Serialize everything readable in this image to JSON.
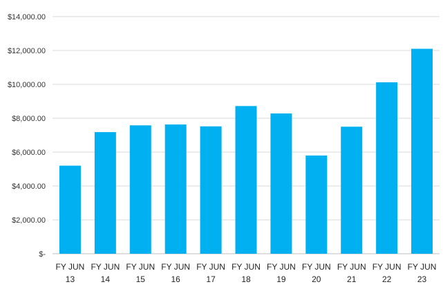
{
  "chart_data": {
    "type": "bar",
    "title": "",
    "xlabel": "",
    "ylabel": "",
    "ylim": [
      0,
      14000
    ],
    "yticks": [
      0,
      2000,
      4000,
      6000,
      8000,
      10000,
      12000,
      14000
    ],
    "ytick_labels": [
      "$-",
      "$2,000.00",
      "$4,000.00",
      "$6,000.00",
      "$8,000.00",
      "$10,000.00",
      "$12,000.00",
      "$14,000.00"
    ],
    "categories": [
      [
        "FY JUN",
        "13"
      ],
      [
        "FY JUN",
        "14"
      ],
      [
        "FY JUN",
        "15"
      ],
      [
        "FY JUN",
        "16"
      ],
      [
        "FY JUN",
        "17"
      ],
      [
        "FY JUN",
        "18"
      ],
      [
        "FY JUN",
        "19"
      ],
      [
        "FY JUN",
        "20"
      ],
      [
        "FY JUN",
        "21"
      ],
      [
        "FY JUN",
        "22"
      ],
      [
        "FY JUN",
        "23"
      ]
    ],
    "values": [
      5200,
      7180,
      7580,
      7630,
      7520,
      8720,
      8280,
      5800,
      7500,
      10120,
      12100
    ],
    "grid": true,
    "legend": "none",
    "colors": {
      "bar": "#00b0f0",
      "grid": "#d9d9d9",
      "axis": "#bfbfbf"
    }
  }
}
